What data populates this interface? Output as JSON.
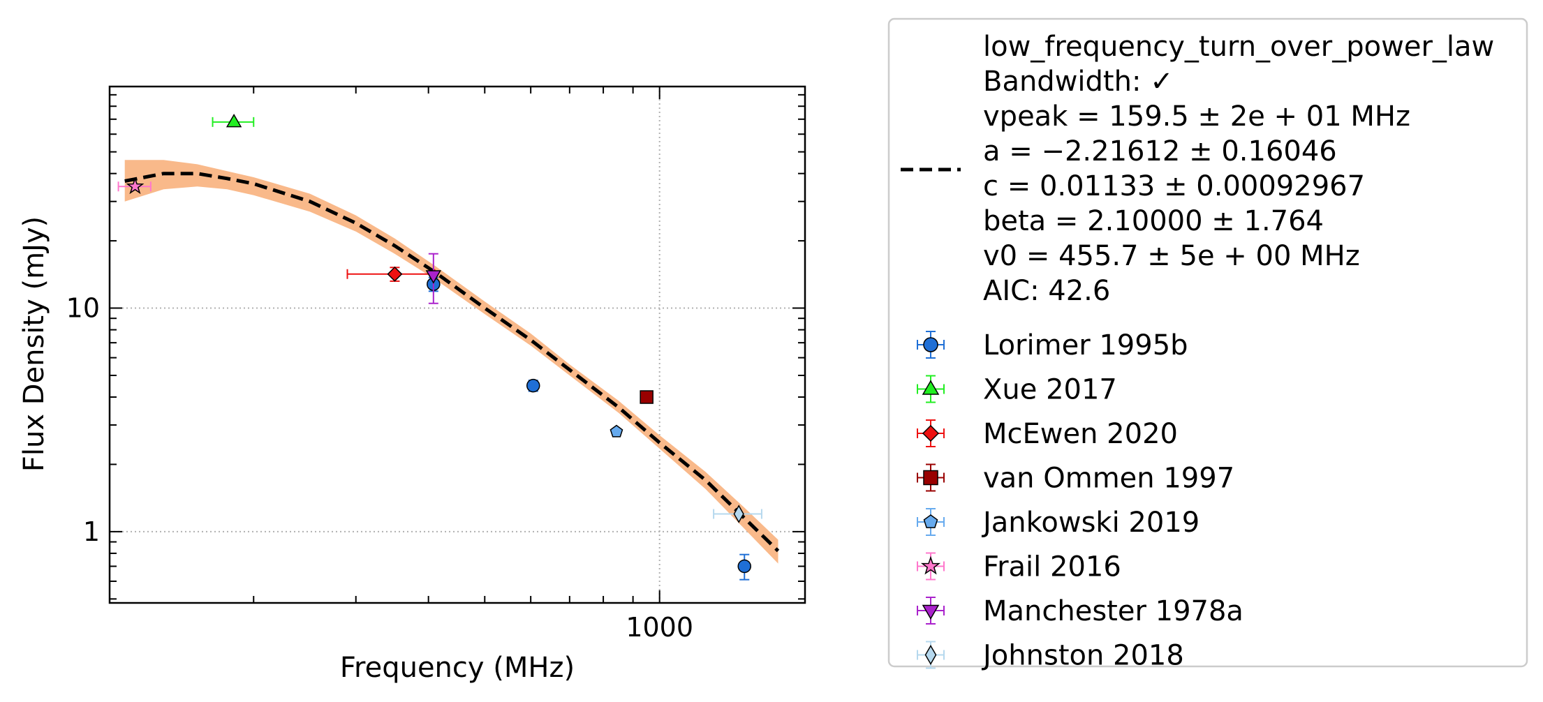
{
  "chart_data": {
    "type": "scatter",
    "title": "",
    "xlabel": "Frequency (MHz)",
    "ylabel": "Flux Density (mJy)",
    "xscale": "log",
    "yscale": "log",
    "xlim": [
      113,
      1780
    ],
    "ylim": [
      0.48,
      98
    ],
    "x_ticks": [
      {
        "value": 1000,
        "label": "1000"
      }
    ],
    "y_ticks": [
      {
        "value": 1,
        "label": "1"
      },
      {
        "value": 10,
        "label": "10"
      }
    ],
    "grid": "major, dotted",
    "legend_position": "right, outside plot",
    "fit": {
      "name": "low_frequency_turn_over_power_law",
      "lines": [
        "low_frequency_turn_over_power_law",
        "Bandwidth: ✓",
        "vpeak = 159.5 ± 2e + 01 MHz",
        "a = −2.21612 ± 0.16046",
        "c = 0.01133 ± 0.00092967",
        "beta = 2.10000 ± 1.764",
        "v0 = 455.7 ± 5e + 00 MHz",
        "AIC: 42.6"
      ],
      "color": "#000000",
      "band_color": "#f9b98a",
      "curve": {
        "x": [
          120,
          140,
          160,
          180,
          200,
          250,
          300,
          350,
          410,
          500,
          600,
          700,
          850,
          1000,
          1200,
          1400,
          1600
        ],
        "y": [
          37,
          40,
          40,
          38,
          36,
          30,
          24,
          19,
          14.5,
          10,
          7.2,
          5.3,
          3.6,
          2.5,
          1.7,
          1.15,
          0.82
        ],
        "band_lower": [
          30,
          34,
          35,
          34,
          32,
          27,
          22,
          17.5,
          13.5,
          9.4,
          6.8,
          5.0,
          3.4,
          2.35,
          1.55,
          1.03,
          0.72
        ],
        "band_upper": [
          46,
          46,
          44,
          41,
          38.5,
          32.5,
          26,
          20.5,
          15.5,
          10.7,
          7.7,
          5.6,
          3.85,
          2.7,
          1.85,
          1.28,
          0.92
        ]
      }
    },
    "series": [
      {
        "name": "Lorimer 1995b",
        "marker": "circle",
        "color": "#1f6fd6",
        "points": [
          {
            "x": 408,
            "y": 12.8,
            "yerr": [
              0.9,
              0.9
            ]
          },
          {
            "x": 606,
            "y": 4.5,
            "yerr": [
              0.25,
              0.25
            ]
          },
          {
            "x": 1400,
            "y": 0.7,
            "yerr": [
              0.09,
              0.09
            ]
          }
        ]
      },
      {
        "name": "Xue 2017",
        "marker": "triangle-up",
        "color": "#22ee22",
        "points": [
          {
            "x": 185,
            "y": 68,
            "xerr": [
              15,
              15
            ]
          }
        ]
      },
      {
        "name": "McEwen 2020",
        "marker": "diamond",
        "color": "#ee1111",
        "points": [
          {
            "x": 350,
            "y": 14.2,
            "xerr": [
              60,
              60
            ],
            "yerr": [
              1.0,
              1.0
            ]
          }
        ]
      },
      {
        "name": "van Ommen 1997",
        "marker": "square",
        "color": "#990000",
        "points": [
          {
            "x": 950,
            "y": 4.0
          }
        ]
      },
      {
        "name": "Jankowski 2019",
        "marker": "pentagon",
        "color": "#66aaee",
        "points": [
          {
            "x": 843,
            "y": 2.8
          }
        ]
      },
      {
        "name": "Frail 2016",
        "marker": "star",
        "color": "#ff77cc",
        "points": [
          {
            "x": 125,
            "y": 35,
            "xerr": [
              8,
              8
            ]
          }
        ]
      },
      {
        "name": "Manchester 1978a",
        "marker": "triangle-down",
        "color": "#aa22cc",
        "points": [
          {
            "x": 408,
            "y": 14.0,
            "yerr": [
              3.5,
              3.5
            ]
          }
        ]
      },
      {
        "name": "Johnston 2018",
        "marker": "thin-diamond",
        "color": "#b5d8ee",
        "points": [
          {
            "x": 1369,
            "y": 1.2,
            "xerr": [
              130,
              130
            ]
          }
        ]
      }
    ]
  }
}
